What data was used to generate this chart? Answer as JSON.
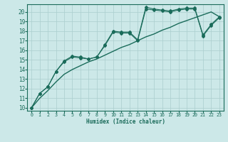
{
  "bg_color": "#cce8e8",
  "grid_color": "#aacece",
  "line_color": "#1a6b5a",
  "xlabel": "Humidex (Indice chaleur)",
  "xlim": [
    -0.5,
    23.5
  ],
  "ylim": [
    9.7,
    20.8
  ],
  "yticks": [
    10,
    11,
    12,
    13,
    14,
    15,
    16,
    17,
    18,
    19,
    20
  ],
  "xticks": [
    0,
    1,
    2,
    3,
    4,
    5,
    6,
    7,
    8,
    9,
    10,
    11,
    12,
    13,
    14,
    15,
    16,
    17,
    18,
    19,
    20,
    21,
    22,
    23
  ],
  "series": [
    {
      "x": [
        0,
        1,
        2,
        3,
        4,
        5,
        6,
        7,
        8,
        9,
        10,
        11,
        12,
        13,
        14,
        15,
        16,
        17,
        18,
        19,
        20,
        21,
        22,
        23
      ],
      "y": [
        10.0,
        11.0,
        11.8,
        12.7,
        13.5,
        14.0,
        14.4,
        14.8,
        15.1,
        15.5,
        15.9,
        16.3,
        16.6,
        17.0,
        17.4,
        17.7,
        18.1,
        18.4,
        18.8,
        19.1,
        19.4,
        19.7,
        20.0,
        19.5
      ],
      "marker": null,
      "lw": 1.0
    },
    {
      "x": [
        0,
        1,
        2,
        3,
        4,
        5,
        6,
        7,
        8,
        9,
        10,
        11,
        12,
        13,
        14,
        15,
        16,
        17,
        18,
        19,
        20,
        21,
        22,
        23
      ],
      "y": [
        10.0,
        11.5,
        12.2,
        13.8,
        14.8,
        15.3,
        15.2,
        15.1,
        15.3,
        16.5,
        17.9,
        17.8,
        17.8,
        17.0,
        20.3,
        20.2,
        20.1,
        20.0,
        20.2,
        20.3,
        20.3,
        17.5,
        18.6,
        19.4
      ],
      "marker": "D",
      "lw": 0.8
    },
    {
      "x": [
        0,
        1,
        2,
        3,
        4,
        5,
        6,
        7,
        8,
        9,
        10,
        11,
        12,
        13,
        14,
        15,
        16,
        17,
        18,
        19,
        20,
        21,
        22,
        23
      ],
      "y": [
        10.0,
        11.5,
        12.2,
        13.8,
        14.9,
        15.4,
        15.3,
        15.1,
        15.3,
        16.6,
        18.0,
        17.9,
        17.9,
        17.1,
        20.5,
        20.3,
        20.2,
        20.1,
        20.3,
        20.4,
        20.4,
        17.6,
        18.7,
        19.5
      ],
      "marker": "D",
      "lw": 0.8
    }
  ]
}
